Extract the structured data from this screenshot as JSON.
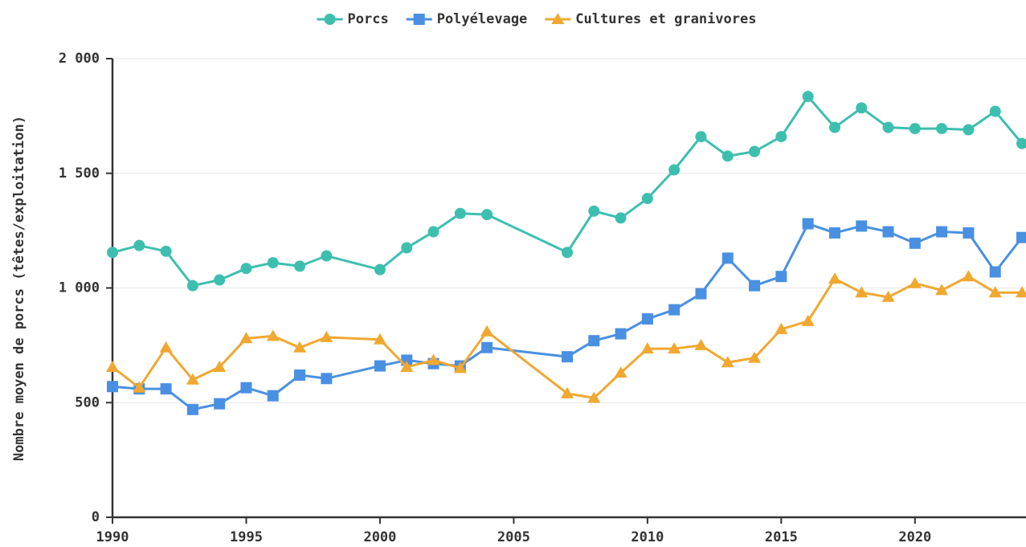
{
  "chart_data": {
    "type": "line",
    "ylabel": "Nombre moyen de porcs (têtes/exploitation)",
    "x": [
      1990,
      1991,
      1992,
      1993,
      1994,
      1995,
      1996,
      1997,
      1998,
      2000,
      2001,
      2002,
      2003,
      2004,
      2007,
      2008,
      2009,
      2010,
      2011,
      2012,
      2013,
      2014,
      2015,
      2016,
      2017,
      2018,
      2019,
      2020,
      2021,
      2022,
      2023,
      2024
    ],
    "series": [
      {
        "name": "Porcs",
        "color": "#3dbfb0",
        "marker": "circle",
        "values": [
          1155,
          1185,
          1160,
          1010,
          1035,
          1085,
          1110,
          1095,
          1140,
          1080,
          1175,
          1245,
          1325,
          1320,
          1155,
          1335,
          1305,
          1390,
          1515,
          1660,
          1575,
          1595,
          1660,
          1835,
          1700,
          1785,
          1700,
          1695,
          1695,
          1690,
          1770,
          1630
        ]
      },
      {
        "name": "Polyélevage",
        "color": "#4a90e2",
        "marker": "square",
        "values": [
          570,
          560,
          560,
          470,
          495,
          565,
          530,
          620,
          605,
          660,
          685,
          670,
          660,
          740,
          700,
          770,
          800,
          865,
          905,
          975,
          1130,
          1010,
          1050,
          1280,
          1240,
          1270,
          1245,
          1195,
          1245,
          1240,
          1070,
          1220
        ]
      },
      {
        "name": "Cultures et granivores",
        "color": "#f0a830",
        "marker": "triangle",
        "values": [
          655,
          565,
          740,
          600,
          655,
          780,
          790,
          740,
          785,
          775,
          655,
          685,
          650,
          810,
          540,
          520,
          630,
          735,
          735,
          750,
          675,
          695,
          820,
          855,
          1040,
          980,
          960,
          1020,
          990,
          1050,
          980,
          980
        ]
      }
    ],
    "xlim": [
      1990,
      2024
    ],
    "xticks": [
      1990,
      1995,
      2000,
      2005,
      2010,
      2015,
      2020
    ],
    "ylim": [
      0,
      2000
    ],
    "yticks": [
      0,
      500,
      {
        "value": 1000,
        "label": "1 000"
      },
      {
        "value": 1500,
        "label": "1 500"
      },
      {
        "value": 2000,
        "label": "2 000"
      }
    ],
    "grid": true,
    "legend": "top"
  }
}
